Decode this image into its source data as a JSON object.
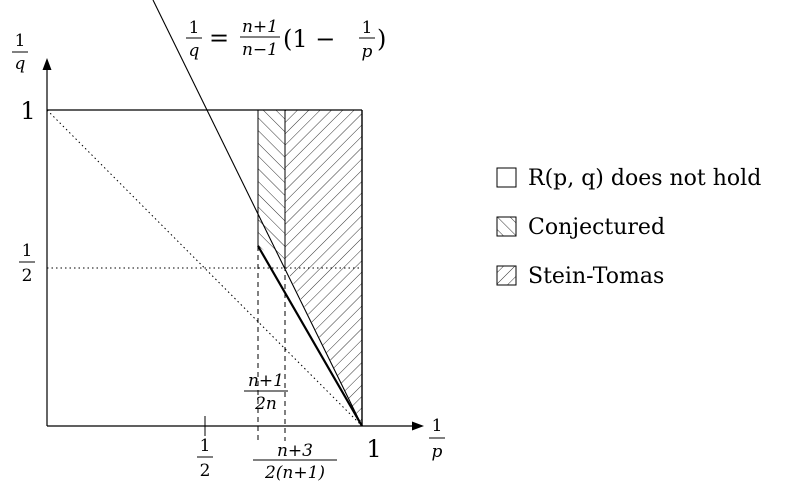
{
  "axes": {
    "x_label": {
      "num": "1",
      "den": "p"
    },
    "y_label": {
      "num": "1",
      "den": "q"
    }
  },
  "line_equation": {
    "lhs": {
      "num": "1",
      "den": "q"
    },
    "eq": "=",
    "coef": {
      "num": "n+1",
      "den": "n−1"
    },
    "paren_open": "(1 −",
    "inner": {
      "num": "1",
      "den": "p"
    },
    "paren_close": ")"
  },
  "ticks": {
    "y_one": "1",
    "y_half": {
      "num": "1",
      "den": "2"
    },
    "x_one": "1",
    "x_half": {
      "num": "1",
      "den": "2"
    },
    "x_a": {
      "num": "n+1",
      "den": "2n"
    },
    "x_b": {
      "num": "n+3",
      "den": "2(n+1)"
    }
  },
  "legend": {
    "items": [
      {
        "label": "R(p, q) does not hold",
        "pattern": "none"
      },
      {
        "label": "Conjectured",
        "pattern": "hatch-backslash"
      },
      {
        "label": "Stein-Tomas",
        "pattern": "hatch-slash"
      }
    ]
  }
}
